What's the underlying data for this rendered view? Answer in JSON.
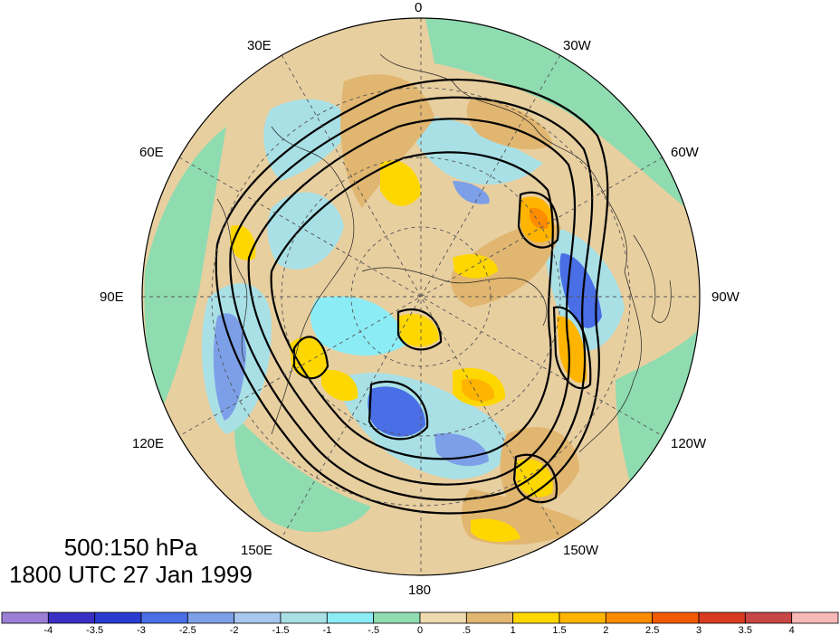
{
  "map": {
    "lon_labels": [
      "0",
      "30W",
      "60W",
      "90W",
      "120W",
      "150W",
      "180",
      "150E",
      "120E",
      "90E",
      "60E",
      "30E"
    ],
    "projection": "polar stereographic, north pole centered",
    "background_color": "#e8cfa0",
    "contour_color": "#000000"
  },
  "title": {
    "line1": "500:150 hPa",
    "line2": "1800 UTC 27 Jan 1999"
  },
  "colorbar": {
    "tick_labels": [
      "-4",
      "-3.5",
      "-3",
      "-2.5",
      "-2",
      "-1.5",
      "-1",
      "-.5",
      "0",
      ".5",
      "1",
      "1.5",
      "2",
      "2.5",
      "3",
      "3.5",
      "4"
    ],
    "colors": [
      "#9b7fd6",
      "#3a2fc4",
      "#2a3bd0",
      "#4a6ee6",
      "#7d9fe8",
      "#a8c7ee",
      "#a8e0e6",
      "#8cecf5",
      "#8fdcb0",
      "#efd9ae",
      "#e1b670",
      "#ffd700",
      "#ffb400",
      "#ff8c00",
      "#f25a00",
      "#d93a20",
      "#c84646",
      "#f7b8b8"
    ]
  }
}
